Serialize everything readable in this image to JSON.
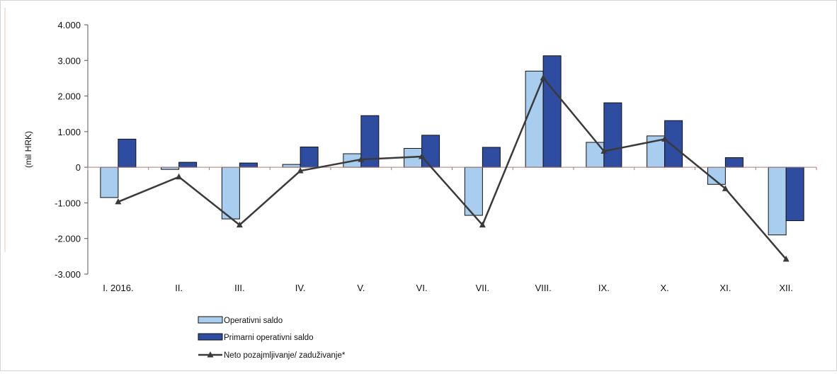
{
  "chart_data": {
    "type": "bar",
    "title": "",
    "xlabel": "",
    "ylabel": "(mil HRK)",
    "ylim": [
      -3000,
      4000
    ],
    "yticks": [
      4000,
      3000,
      2000,
      1000,
      0,
      -1000,
      -2000,
      -3000
    ],
    "ytick_labels": [
      "4.000",
      "3.000",
      "2.000",
      "1.000",
      "0",
      "-1.000",
      "-2.000",
      "-3.000"
    ],
    "grid": false,
    "legend_position": "bottom-left",
    "categories": [
      "I. 2016.",
      "II.",
      "III.",
      "IV.",
      "V.",
      "VI.",
      "VII.",
      "VIII.",
      "IX.",
      "X.",
      "XI.",
      "XII."
    ],
    "series": [
      {
        "name": "Operativni saldo",
        "type": "bar",
        "color": "#a9cdef",
        "values": [
          -850,
          -60,
          -1450,
          80,
          380,
          530,
          -1350,
          2700,
          700,
          880,
          -480,
          -1900
        ]
      },
      {
        "name": "Primarni operativni saldo",
        "type": "bar",
        "color": "#2e4da0",
        "values": [
          790,
          140,
          120,
          570,
          1450,
          900,
          560,
          3130,
          1810,
          1310,
          270,
          -1500
        ]
      },
      {
        "name": "Neto pozajmljivanje/ zaduživanje*",
        "type": "line",
        "color": "#3a3a3a",
        "marker": "triangle",
        "values": [
          -970,
          -270,
          -1620,
          -100,
          220,
          300,
          -1620,
          2510,
          450,
          790,
          -600,
          -2580
        ]
      }
    ]
  }
}
